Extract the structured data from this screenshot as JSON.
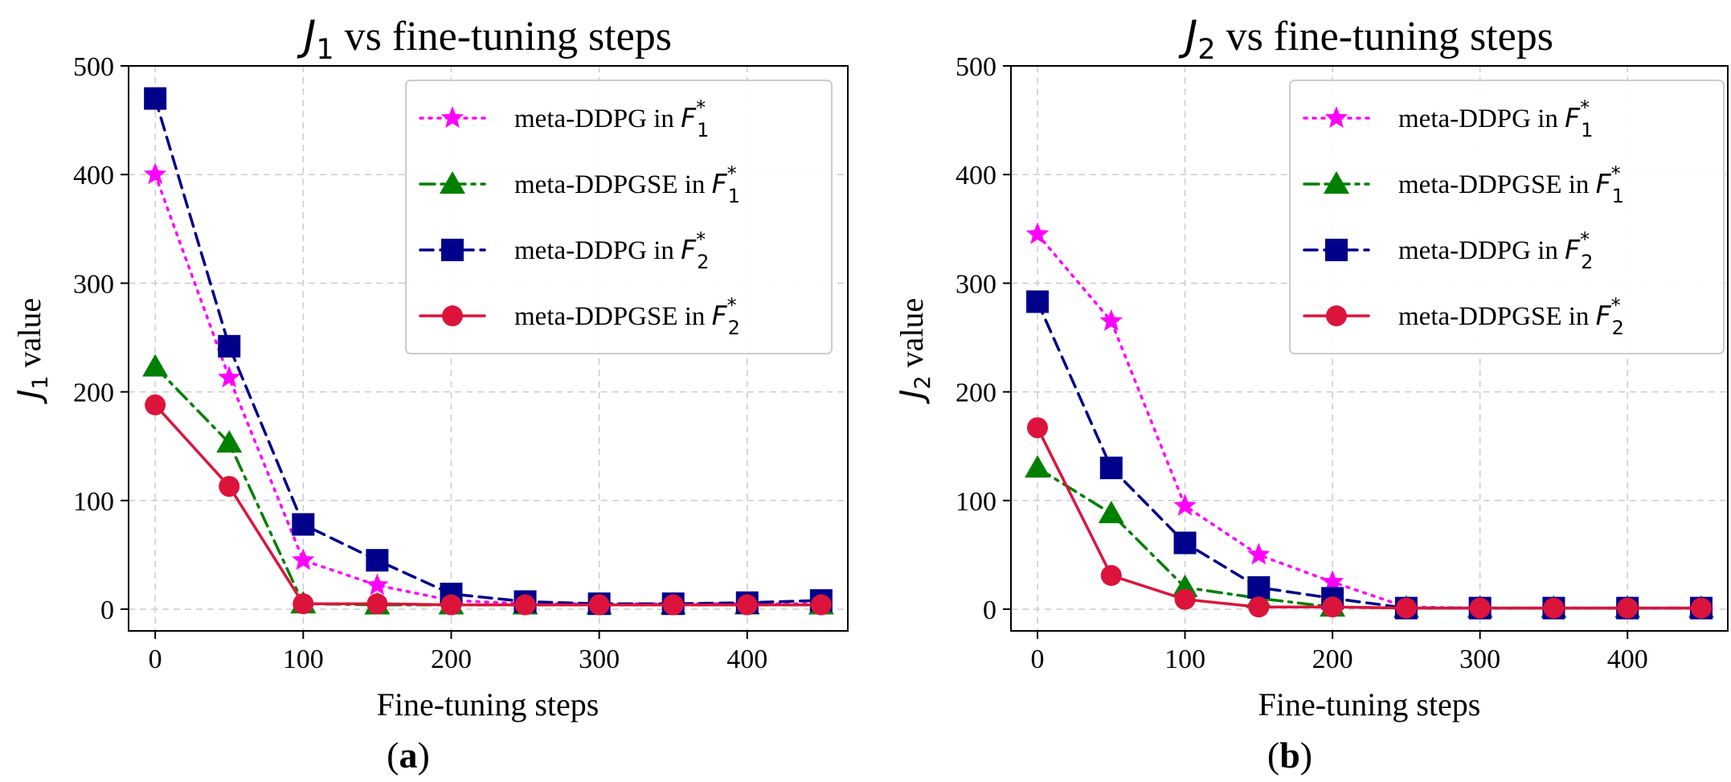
{
  "chart_data": [
    {
      "type": "line",
      "panel_label": "(a)",
      "title": {
        "var": "J",
        "sub": "1",
        "rest": " vs fine-tuning steps"
      },
      "xlabel": "Fine-tuning steps",
      "ylabel": {
        "var": "J",
        "sub": "1",
        "rest": " value"
      },
      "xlim": [
        -18,
        468
      ],
      "ylim": [
        -20,
        500
      ],
      "xticks": [
        0,
        100,
        200,
        300,
        400
      ],
      "yticks": [
        0,
        100,
        200,
        300,
        400,
        500
      ],
      "grid": true,
      "legend_position": "top-right",
      "x": [
        0,
        50,
        100,
        150,
        200,
        250,
        300,
        350,
        400,
        450
      ],
      "series": [
        {
          "name": "meta-DDPG in F1*",
          "label_main": "meta-DDPG in ",
          "label_var": "F",
          "label_sub": "1",
          "label_sup": "*",
          "color": "#ff00ff",
          "dash": "dotted",
          "marker": "star",
          "values": [
            400,
            213,
            45,
            22,
            8,
            5,
            5,
            5,
            5,
            5
          ]
        },
        {
          "name": "meta-DDPGSE in F1*",
          "label_main": "meta-DDPGSE in ",
          "label_var": "F",
          "label_sub": "1",
          "label_sup": "*",
          "color": "#008000",
          "dash": "dashdot",
          "marker": "triangle",
          "values": [
            223,
            153,
            5,
            4,
            4,
            4,
            4,
            4,
            4,
            4
          ]
        },
        {
          "name": "meta-DDPG in F2*",
          "label_main": "meta-DDPG in ",
          "label_var": "F",
          "label_sub": "2",
          "label_sup": "*",
          "color": "#00008b",
          "dash": "dashed",
          "marker": "square",
          "values": [
            470,
            242,
            78,
            45,
            14,
            7,
            5,
            5,
            6,
            8
          ]
        },
        {
          "name": "meta-DDPGSE in F2*",
          "label_main": "meta-DDPGSE in ",
          "label_var": "F",
          "label_sub": "2",
          "label_sup": "*",
          "color": "#dc143c",
          "dash": "solid",
          "marker": "circle",
          "values": [
            188,
            113,
            5,
            5,
            4,
            4,
            4,
            4,
            4,
            4
          ]
        }
      ]
    },
    {
      "type": "line",
      "panel_label": "(b)",
      "title": {
        "var": "J",
        "sub": "2",
        "rest": " vs fine-tuning steps"
      },
      "xlabel": "Fine-tuning steps",
      "ylabel": {
        "var": "J",
        "sub": "2",
        "rest": " value"
      },
      "xlim": [
        -18,
        468
      ],
      "ylim": [
        -20,
        500
      ],
      "xticks": [
        0,
        100,
        200,
        300,
        400
      ],
      "yticks": [
        0,
        100,
        200,
        300,
        400,
        500
      ],
      "grid": true,
      "legend_position": "top-right",
      "x": [
        0,
        50,
        100,
        150,
        200,
        250,
        300,
        350,
        400,
        450
      ],
      "series": [
        {
          "name": "meta-DDPG in F1*",
          "label_main": "meta-DDPG in ",
          "label_var": "F",
          "label_sub": "1",
          "label_sup": "*",
          "color": "#ff00ff",
          "dash": "dotted",
          "marker": "star",
          "values": [
            345,
            265,
            95,
            50,
            25,
            2,
            1,
            1,
            1,
            1
          ]
        },
        {
          "name": "meta-DDPGSE in F1*",
          "label_main": "meta-DDPGSE in ",
          "label_var": "F",
          "label_sub": "1",
          "label_sup": "*",
          "color": "#008000",
          "dash": "dashdot",
          "marker": "triangle",
          "values": [
            130,
            88,
            20,
            10,
            2,
            1,
            1,
            1,
            1,
            1
          ]
        },
        {
          "name": "meta-DDPG in F2*",
          "label_main": "meta-DDPG in ",
          "label_var": "F",
          "label_sub": "2",
          "label_sup": "*",
          "color": "#00008b",
          "dash": "dashed",
          "marker": "square",
          "values": [
            283,
            130,
            61,
            20,
            10,
            1,
            1,
            1,
            1,
            1
          ]
        },
        {
          "name": "meta-DDPGSE in F2*",
          "label_main": "meta-DDPGSE in ",
          "label_var": "F",
          "label_sub": "2",
          "label_sup": "*",
          "color": "#dc143c",
          "dash": "solid",
          "marker": "circle",
          "values": [
            167,
            31,
            9,
            2,
            2,
            1,
            1,
            1,
            1,
            1
          ]
        }
      ]
    }
  ]
}
